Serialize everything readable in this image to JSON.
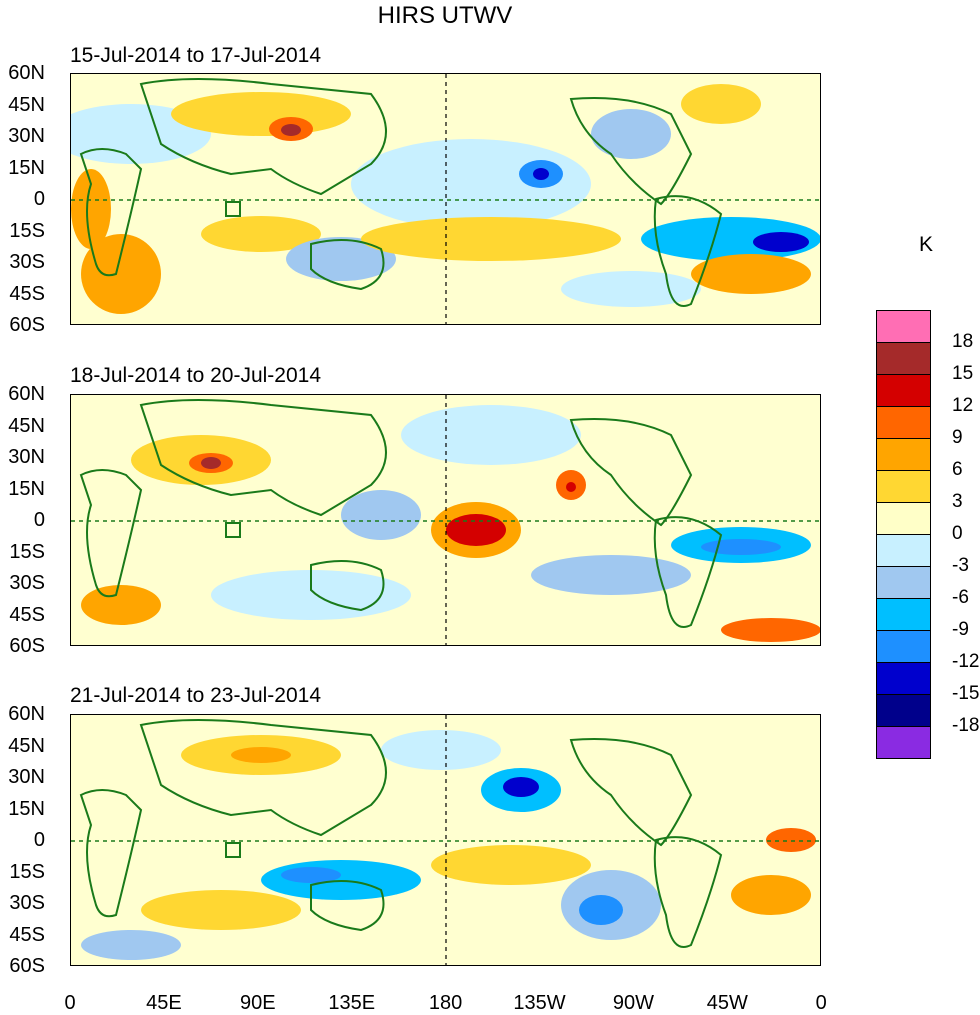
{
  "title": "HIRS UTWV",
  "panels": [
    {
      "label": "15-Jul-2014 to 17-Jul-2014"
    },
    {
      "label": "18-Jul-2014 to 20-Jul-2014"
    },
    {
      "label": "21-Jul-2014 to 23-Jul-2014"
    }
  ],
  "lat_labels": [
    "60N",
    "45N",
    "30N",
    "15N",
    "0",
    "15S",
    "30S",
    "45S",
    "60S"
  ],
  "lon_labels": [
    "0",
    "45E",
    "90E",
    "135E",
    "180",
    "135W",
    "90W",
    "45W",
    "0"
  ],
  "colorbar": {
    "unit": "K",
    "labels": [
      "18",
      "15",
      "12",
      "9",
      "6",
      "3",
      "0",
      "-3",
      "-6",
      "-9",
      "-12",
      "-15",
      "-18"
    ],
    "colors": [
      "#ff6eb4",
      "#a52a2a",
      "#d40000",
      "#ff6600",
      "#ffa500",
      "#ffd732",
      "#ffffc8",
      "#c8f0ff",
      "#a0c8f0",
      "#00bfff",
      "#1e90ff",
      "#0000cd",
      "#00008b",
      "#8a2be2"
    ]
  },
  "land_outline_color": "#1a7a1a"
}
